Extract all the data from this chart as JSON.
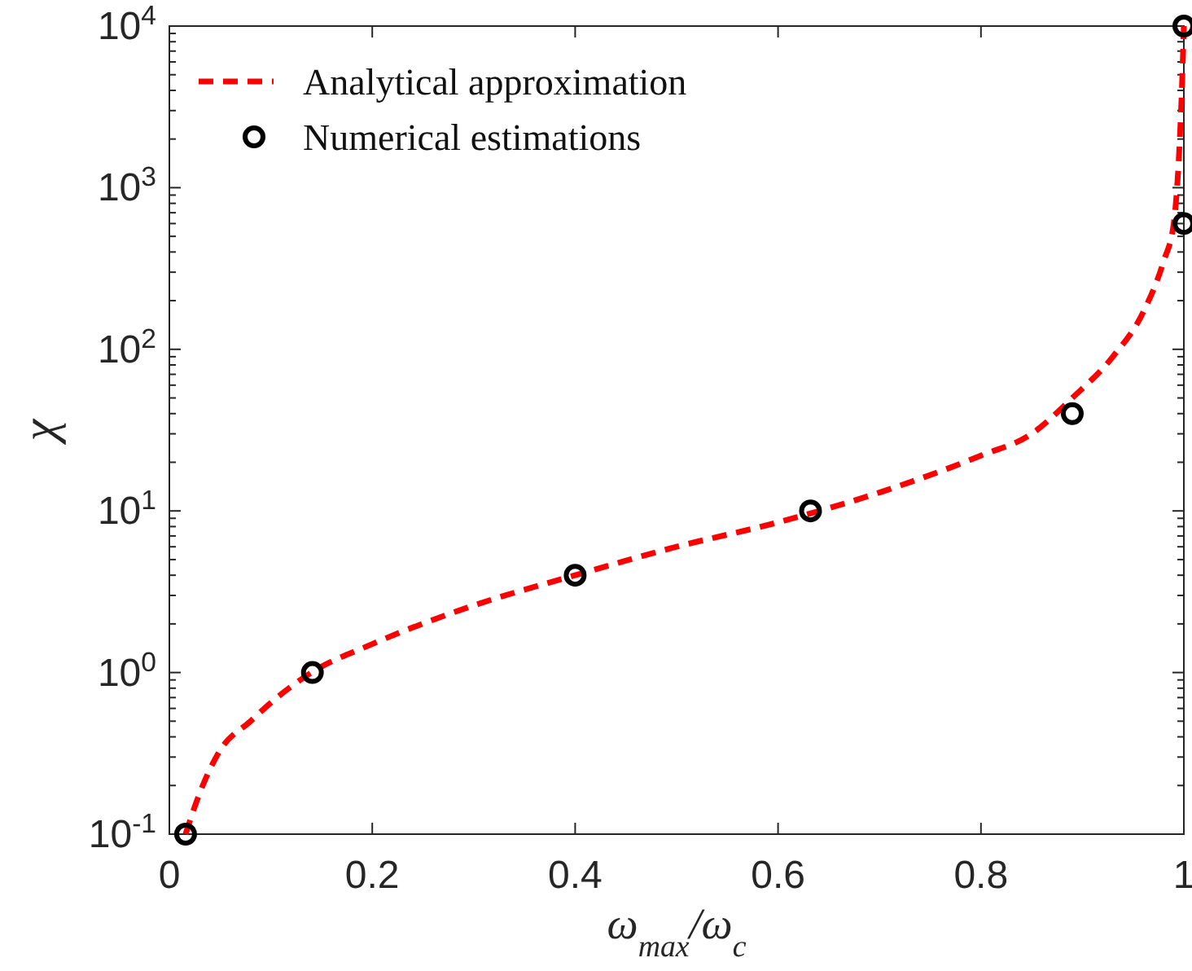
{
  "chart_data": {
    "type": "line",
    "xlabel": "ω$_{max}$/ω$_{c}$",
    "ylabel": "χ",
    "log": "y",
    "legend": "top left",
    "grid": false,
    "xlim": [
      0,
      1
    ],
    "xticks": [
      0,
      0.2,
      0.4,
      0.6,
      0.8,
      1
    ],
    "ylim": [
      0.1,
      10000
    ],
    "yticks": [
      {
        "value": 0.1,
        "label": "10$^{-1}$"
      },
      {
        "value": 1,
        "label": "10$^{0}$"
      },
      {
        "value": 10,
        "label": "10$^{1}$"
      },
      {
        "value": 100,
        "label": "10$^{2}$"
      },
      {
        "value": 1000,
        "label": "10$^{3}$"
      },
      {
        "value": 10000,
        "label": "10$^{4}$"
      }
    ],
    "series": [
      {
        "name": "Analytical approximation",
        "color": "#ff0000",
        "line_style": "dashed",
        "x": [
          0.016,
          0.03,
          0.05,
          0.08,
          0.1,
          0.14,
          0.2,
          0.3,
          0.4,
          0.5,
          0.6,
          0.7,
          0.8,
          0.85,
          0.89,
          0.93,
          0.96,
          0.98,
          0.99,
          0.995,
          0.998,
          1.0
        ],
        "values": [
          0.1,
          0.18,
          0.33,
          0.5,
          0.65,
          1.0,
          1.5,
          2.6,
          4,
          6,
          8.5,
          13,
          22,
          30,
          50,
          90,
          170,
          350,
          600,
          1500,
          4000,
          10000
        ]
      },
      {
        "name": "Numerical estimations",
        "type": "scatter",
        "color": "#000000",
        "marker": "circle",
        "x": [
          0.016,
          0.141,
          0.4,
          0.632,
          0.89,
          1.0,
          1.0
        ],
        "values": [
          0.1,
          1,
          4,
          10,
          40,
          600,
          10000
        ]
      }
    ]
  }
}
